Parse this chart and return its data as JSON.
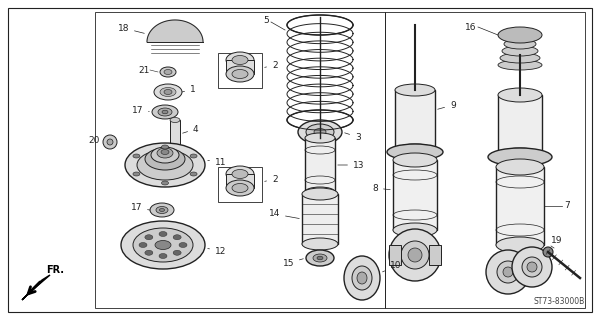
{
  "diagram_code": "ST73-83000B",
  "bg": "#ffffff",
  "lc": "#222222",
  "gray_light": "#dddddd",
  "gray_mid": "#bbbbbb",
  "gray_dark": "#888888"
}
